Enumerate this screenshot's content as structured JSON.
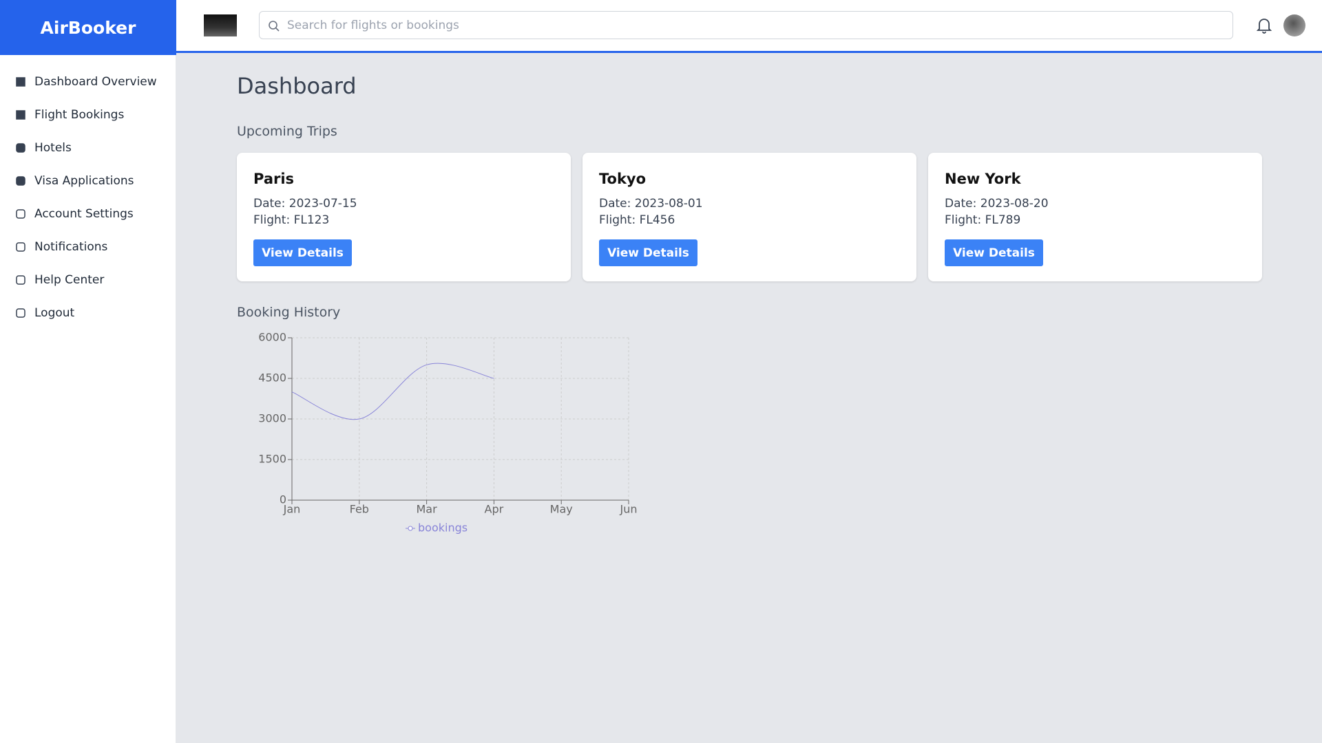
{
  "sidebar": {
    "brand": "AirBooker",
    "items": [
      "Dashboard Overview",
      "Flight Bookings",
      "Hotels",
      "Visa Applications",
      "Account Settings",
      "Notifications",
      "Help Center",
      "Logout"
    ]
  },
  "header": {
    "search_placeholder": "Search for flights or bookings"
  },
  "main": {
    "title": "Dashboard",
    "upcoming_title": "Upcoming Trips",
    "history_title": "Booking History"
  },
  "trips": [
    {
      "city": "Paris",
      "date": "Date: 2023-07-15",
      "flight": "Flight: FL123",
      "button": "View Details"
    },
    {
      "city": "Tokyo",
      "date": "Date: 2023-08-01",
      "flight": "Flight: FL456",
      "button": "View Details"
    },
    {
      "city": "New York",
      "date": "Date: 2023-08-20",
      "flight": "Flight: FL789",
      "button": "View Details"
    }
  ],
  "chart_data": {
    "type": "line",
    "categories": [
      "Jan",
      "Feb",
      "Mar",
      "Apr",
      "May",
      "Jun"
    ],
    "series": [
      {
        "name": "bookings",
        "color": "#8884d8",
        "values": [
          4000,
          3000,
          5000,
          4500,
          null,
          null
        ]
      }
    ],
    "ylim": [
      0,
      6000
    ],
    "yticks": [
      0,
      1500,
      3000,
      4500,
      6000
    ],
    "grid": true
  }
}
